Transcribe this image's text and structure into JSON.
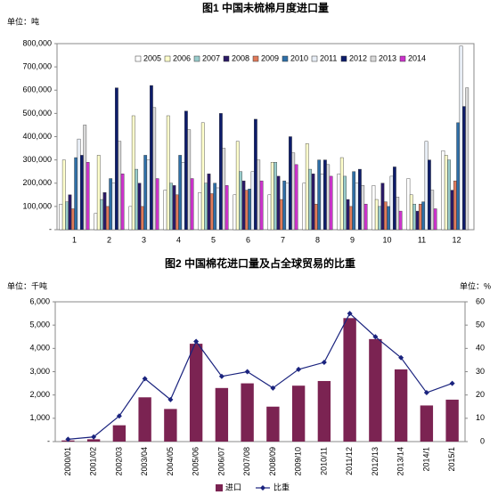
{
  "chart_data": [
    {
      "type": "bar",
      "title": "图1 中国未梳棉月度进口量",
      "unit": "单位：吨",
      "categories": [
        "1",
        "2",
        "3",
        "4",
        "5",
        "6",
        "7",
        "8",
        "9",
        "10",
        "11",
        "12"
      ],
      "ylim": [
        0,
        800000
      ],
      "yticks": [
        {
          "value": 0,
          "label": "-"
        },
        {
          "value": 100000,
          "label": "100,000"
        },
        {
          "value": 200000,
          "label": "200,000"
        },
        {
          "value": 300000,
          "label": "300,000"
        },
        {
          "value": 400000,
          "label": "400,000"
        },
        {
          "value": 500000,
          "label": "500,000"
        },
        {
          "value": 600000,
          "label": "600,000"
        },
        {
          "value": 700000,
          "label": "700,000"
        },
        {
          "value": 800000,
          "label": "800,000"
        }
      ],
      "grid": false,
      "legend": "top",
      "series": [
        {
          "name": "2005",
          "color": "#ffffff",
          "values": [
            110000,
            70000,
            100000,
            170000,
            160000,
            150000,
            150000,
            200000,
            240000,
            190000,
            220000,
            340000
          ]
        },
        {
          "name": "2006",
          "color": "#ffffcc",
          "values": [
            300000,
            320000,
            490000,
            490000,
            460000,
            380000,
            290000,
            370000,
            310000,
            130000,
            150000,
            320000
          ]
        },
        {
          "name": "2007",
          "color": "#99cccc",
          "values": [
            120000,
            130000,
            260000,
            200000,
            200000,
            250000,
            290000,
            260000,
            230000,
            100000,
            110000,
            300000
          ]
        },
        {
          "name": "2008",
          "color": "#2b1a66",
          "values": [
            150000,
            160000,
            200000,
            190000,
            240000,
            210000,
            230000,
            240000,
            130000,
            200000,
            80000,
            170000
          ]
        },
        {
          "name": "2009",
          "color": "#e07a5a",
          "values": [
            90000,
            100000,
            100000,
            150000,
            155000,
            170000,
            130000,
            110000,
            100000,
            120000,
            110000,
            210000
          ]
        },
        {
          "name": "2010",
          "color": "#2e6fa8",
          "values": [
            310000,
            220000,
            320000,
            320000,
            200000,
            175000,
            210000,
            300000,
            250000,
            100000,
            120000,
            460000
          ]
        },
        {
          "name": "2011",
          "color": "#e8eef6",
          "values": [
            390000,
            200000,
            300000,
            290000,
            180000,
            250000,
            200000,
            240000,
            200000,
            230000,
            380000,
            790000
          ]
        },
        {
          "name": "2012",
          "color": "#0d1c6b",
          "values": [
            320000,
            610000,
            620000,
            510000,
            500000,
            475000,
            400000,
            300000,
            260000,
            270000,
            300000,
            530000
          ]
        },
        {
          "name": "2013",
          "color": "#d9d9d9",
          "values": [
            450000,
            380000,
            525000,
            430000,
            350000,
            300000,
            330000,
            280000,
            190000,
            140000,
            170000,
            610000
          ]
        },
        {
          "name": "2014",
          "color": "#cc33cc",
          "values": [
            290000,
            240000,
            220000,
            220000,
            190000,
            210000,
            280000,
            230000,
            110000,
            80000,
            90000,
            null
          ]
        }
      ]
    },
    {
      "type": "bar",
      "title": "图2 中国棉花进口量及占全球贸易的比重",
      "unit": "单位：千吨",
      "unit2": "单位：%",
      "categories": [
        "2000/01",
        "2001/02",
        "2002/03",
        "2003/04",
        "2004/05",
        "2005/06",
        "2006/07",
        "2007/08",
        "2008/09",
        "2009/10",
        "2010/11",
        "2011/12",
        "2012/13",
        "2013/14",
        "2014/1",
        "2015/1"
      ],
      "ylim": [
        0,
        6000
      ],
      "yticks": [
        {
          "value": 0,
          "label": "-"
        },
        {
          "value": 1000,
          "label": "1,000"
        },
        {
          "value": 2000,
          "label": "2,000"
        },
        {
          "value": 3000,
          "label": "3,000"
        },
        {
          "value": 4000,
          "label": "4,000"
        },
        {
          "value": 5000,
          "label": "5,000"
        },
        {
          "value": 6000,
          "label": "6,000"
        }
      ],
      "y2lim": [
        0,
        60
      ],
      "y2ticks": [
        0,
        10,
        20,
        30,
        40,
        50,
        60
      ],
      "grid": false,
      "legend": "bottom",
      "series": [
        {
          "name": "进口",
          "color": "#7b2352",
          "values": [
            50,
            100,
            700,
            1900,
            1400,
            4200,
            2300,
            2500,
            1500,
            2400,
            2600,
            5300,
            4400,
            3100,
            1550,
            1800
          ]
        },
        {
          "name": "比重",
          "color": "#1a237e",
          "type": "line",
          "axis": "y2",
          "values": [
            1,
            2,
            11,
            27,
            18,
            43,
            28,
            30,
            23,
            31,
            34,
            55,
            45,
            36,
            21,
            25
          ]
        }
      ]
    }
  ]
}
